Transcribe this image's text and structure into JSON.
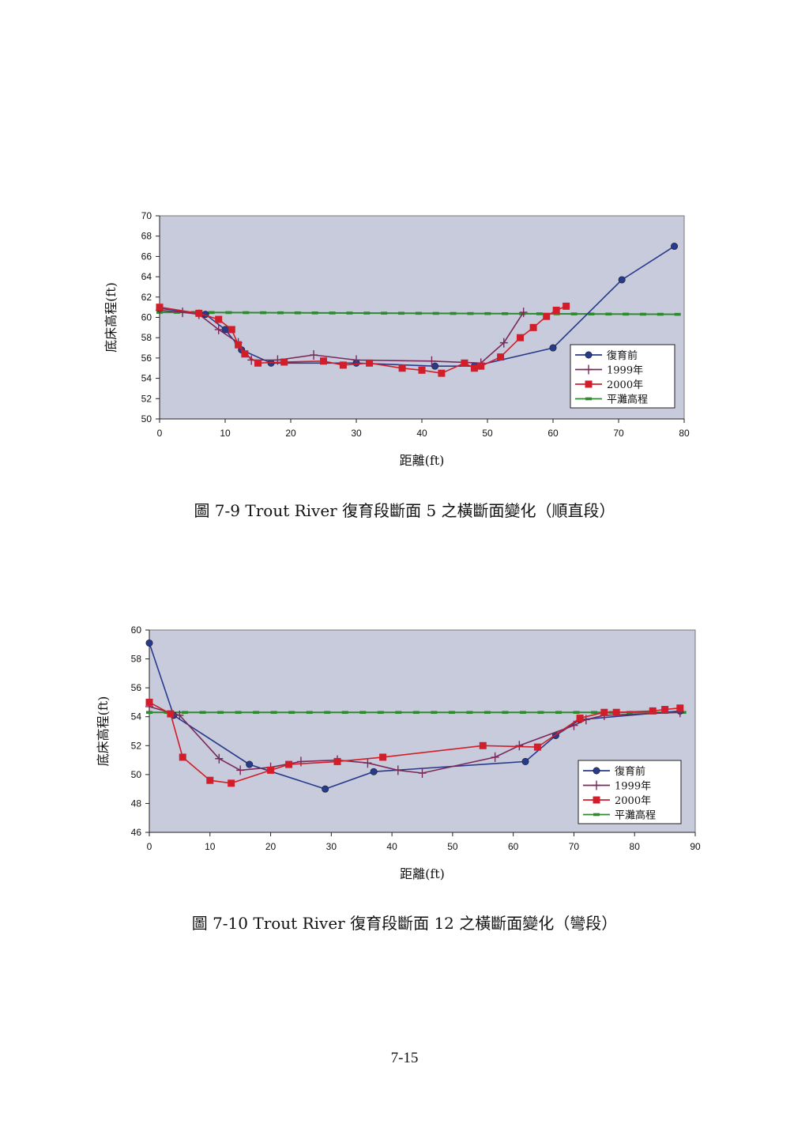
{
  "page_number": "7-15",
  "colors": {
    "plot_bg": "#c8cbdc",
    "series_pre": "#283a8c",
    "series_1999": "#7a2a5a",
    "series_2000": "#d21e2a",
    "series_bankfull": "#2e8a2e"
  },
  "chart_data": [
    {
      "type": "line",
      "caption": "圖 7-9 Trout River 復育段斷面 5 之橫斷面變化（順直段）",
      "xlabel": "距離(ft)",
      "ylabel": "底床高程(ft)",
      "xlim": [
        0,
        80
      ],
      "ylim": [
        50,
        70
      ],
      "xticks": [
        0,
        10,
        20,
        30,
        40,
        50,
        60,
        70,
        80
      ],
      "yticks": [
        50,
        52,
        54,
        56,
        58,
        60,
        62,
        64,
        66,
        68,
        70
      ],
      "grid": false,
      "legend": "bottom-right",
      "series": [
        {
          "name": "復育前",
          "marker": "circle",
          "color": "#283a8c",
          "points": [
            [
              0,
              60.9
            ],
            [
              7,
              60.3
            ],
            [
              10,
              58.8
            ],
            [
              12.5,
              56.8
            ],
            [
              17,
              55.5
            ],
            [
              30,
              55.5
            ],
            [
              42,
              55.2
            ],
            [
              48,
              55.2
            ],
            [
              60,
              57.0
            ],
            [
              70.5,
              63.7
            ],
            [
              78.5,
              67.0
            ]
          ]
        },
        {
          "name": "1999年",
          "marker": "plus",
          "color": "#7a2a5a",
          "points": [
            [
              0,
              60.7
            ],
            [
              3.5,
              60.5
            ],
            [
              6,
              60.3
            ],
            [
              9,
              58.8
            ],
            [
              12,
              57.5
            ],
            [
              14,
              55.8
            ],
            [
              18,
              55.8
            ],
            [
              23.5,
              56.3
            ],
            [
              30,
              55.8
            ],
            [
              41.5,
              55.7
            ],
            [
              49,
              55.5
            ],
            [
              52.5,
              57.5
            ],
            [
              55.5,
              60.5
            ]
          ]
        },
        {
          "name": "2000年",
          "marker": "square",
          "color": "#d21e2a",
          "points": [
            [
              0,
              61.0
            ],
            [
              6,
              60.4
            ],
            [
              9,
              59.8
            ],
            [
              11,
              58.8
            ],
            [
              12,
              57.3
            ],
            [
              13,
              56.4
            ],
            [
              15,
              55.5
            ],
            [
              19,
              55.6
            ],
            [
              25,
              55.7
            ],
            [
              28,
              55.3
            ],
            [
              32,
              55.5
            ],
            [
              37,
              55.0
            ],
            [
              40,
              54.8
            ],
            [
              43,
              54.5
            ],
            [
              46.5,
              55.5
            ],
            [
              48,
              55.0
            ],
            [
              49,
              55.2
            ],
            [
              52,
              56.1
            ],
            [
              55,
              58.0
            ],
            [
              57,
              59.0
            ],
            [
              59,
              60.1
            ],
            [
              60.5,
              60.7
            ],
            [
              62,
              61.1
            ]
          ]
        },
        {
          "name": "平灘高程",
          "marker": "dash",
          "color": "#2e8a2e",
          "points": [
            [
              0,
              60.5
            ],
            [
              79,
              60.3
            ]
          ]
        }
      ]
    },
    {
      "type": "line",
      "caption": "圖 7-10 Trout River 復育段斷面 12 之橫斷面變化（彎段）",
      "xlabel": "距離(ft)",
      "ylabel": "底床高程(ft)",
      "xlim": [
        0,
        90
      ],
      "ylim": [
        46,
        60
      ],
      "xticks": [
        0,
        10,
        20,
        30,
        40,
        50,
        60,
        70,
        80,
        90
      ],
      "yticks": [
        46,
        48,
        50,
        52,
        54,
        56,
        58,
        60
      ],
      "grid": false,
      "legend": "bottom-right",
      "series": [
        {
          "name": "復育前",
          "marker": "circle",
          "color": "#283a8c",
          "points": [
            [
              0,
              59.1
            ],
            [
              4,
              54.1
            ],
            [
              16.5,
              50.7
            ],
            [
              29,
              49.0
            ],
            [
              37,
              50.2
            ],
            [
              62,
              50.9
            ],
            [
              67,
              52.7
            ],
            [
              71,
              53.8
            ],
            [
              87.5,
              54.4
            ]
          ]
        },
        {
          "name": "1999年",
          "marker": "plus",
          "color": "#7a2a5a",
          "points": [
            [
              0,
              54.7
            ],
            [
              5,
              54.1
            ],
            [
              11.5,
              51.1
            ],
            [
              15,
              50.3
            ],
            [
              20,
              50.5
            ],
            [
              25,
              50.9
            ],
            [
              31,
              51.0
            ],
            [
              36,
              50.8
            ],
            [
              41,
              50.3
            ],
            [
              45,
              50.1
            ],
            [
              57,
              51.2
            ],
            [
              61,
              52.0
            ],
            [
              70,
              53.4
            ],
            [
              72,
              53.8
            ],
            [
              75,
              54.1
            ],
            [
              87.5,
              54.3
            ]
          ]
        },
        {
          "name": "2000年",
          "marker": "square",
          "color": "#d21e2a",
          "points": [
            [
              0,
              55.0
            ],
            [
              3.5,
              54.2
            ],
            [
              5.5,
              51.2
            ],
            [
              10,
              49.6
            ],
            [
              13.5,
              49.4
            ],
            [
              20,
              50.3
            ],
            [
              23,
              50.7
            ],
            [
              31,
              50.9
            ],
            [
              38.5,
              51.2
            ],
            [
              55,
              52.0
            ],
            [
              64,
              51.9
            ],
            [
              71,
              53.9
            ],
            [
              75,
              54.3
            ],
            [
              77,
              54.3
            ],
            [
              83,
              54.4
            ],
            [
              85,
              54.5
            ],
            [
              87.5,
              54.6
            ]
          ]
        },
        {
          "name": "平灘高程",
          "marker": "dash",
          "color": "#2e8a2e",
          "points": [
            [
              0,
              54.3
            ],
            [
              88,
              54.3
            ]
          ]
        }
      ]
    }
  ]
}
